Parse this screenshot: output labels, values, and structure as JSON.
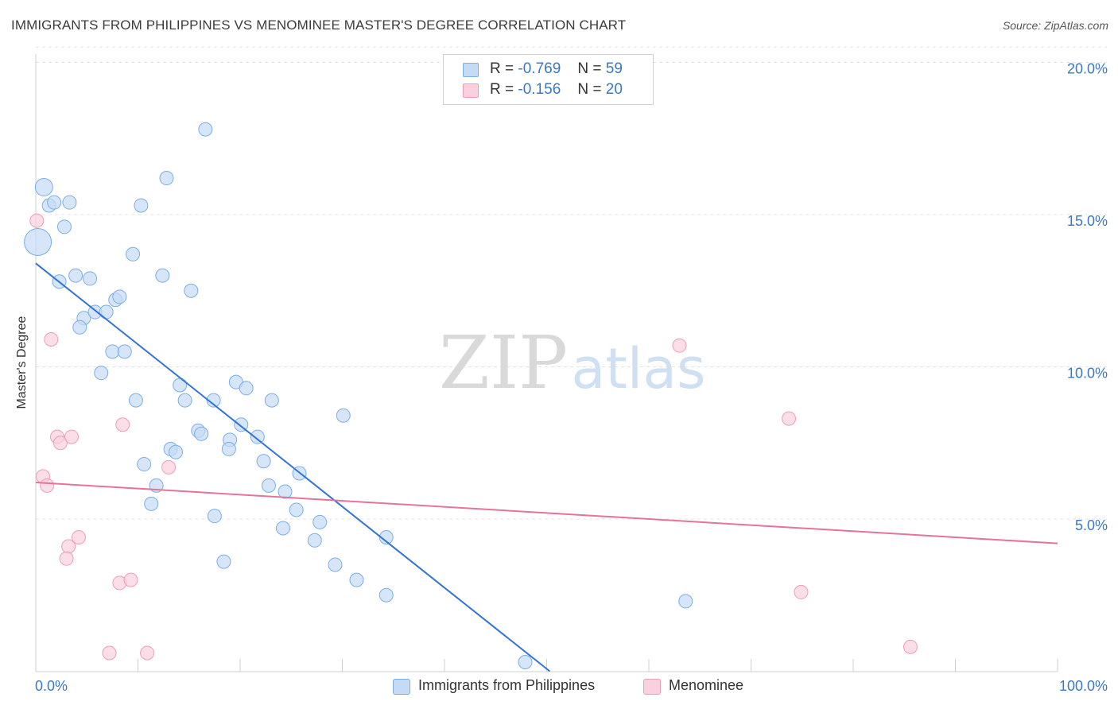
{
  "title": "IMMIGRANTS FROM PHILIPPINES VS MENOMINEE MASTER'S DEGREE CORRELATION CHART",
  "source": "Source: ZipAtlas.com",
  "watermark": {
    "zip": "ZIP",
    "atlas": "atlas"
  },
  "colors": {
    "blue_fill": "#c5dbf5",
    "blue_stroke": "#7baee8",
    "blue_line": "#2f74d6",
    "pink_fill": "#f9d0de",
    "pink_stroke": "#ee9db8",
    "pink_line": "#e5739a",
    "tick_label": "#3b78c4",
    "grid": "#e3e3e3"
  },
  "stats": [
    {
      "r_label": "R =",
      "r_value": "-0.769",
      "n_label": "N =",
      "n_value": "59",
      "color": "blue"
    },
    {
      "r_label": "R =",
      "r_value": "-0.156",
      "n_label": "N =",
      "n_value": "20",
      "color": "pink"
    }
  ],
  "legend": [
    {
      "label": "Immigrants from Philippines",
      "color": "blue"
    },
    {
      "label": "Menominee",
      "color": "pink"
    }
  ],
  "chart_data": {
    "type": "scatter",
    "title": "IMMIGRANTS FROM PHILIPPINES VS MENOMINEE MASTER'S DEGREE CORRELATION CHART",
    "xlabel": "",
    "ylabel": "Master's Degree",
    "xlim": [
      0,
      100
    ],
    "ylim": [
      0,
      20.5
    ],
    "x_ticks": [
      0,
      10,
      20,
      30,
      40,
      50,
      60,
      70,
      80,
      90,
      100
    ],
    "x_tick_labels": {
      "0": "0.0%",
      "100": "100.0%"
    },
    "y_ticks": [
      5,
      10,
      15,
      20
    ],
    "y_tick_labels": [
      "5.0%",
      "10.0%",
      "15.0%",
      "20.0%"
    ],
    "grid": "horizontal dashed",
    "series": [
      {
        "name": "Immigrants from Philippines",
        "color": "blue",
        "trend": {
          "x": [
            0,
            50.3
          ],
          "y": [
            13.4,
            0
          ]
        },
        "points": [
          {
            "x": 0.2,
            "y": 14.1,
            "s": 3
          },
          {
            "x": 0.8,
            "y": 15.9,
            "s": 2
          },
          {
            "x": 1.3,
            "y": 15.3,
            "s": 1
          },
          {
            "x": 1.8,
            "y": 15.4,
            "s": 1
          },
          {
            "x": 3.3,
            "y": 15.4,
            "s": 1
          },
          {
            "x": 2.8,
            "y": 14.6,
            "s": 1
          },
          {
            "x": 2.3,
            "y": 12.8,
            "s": 1
          },
          {
            "x": 3.9,
            "y": 13.0,
            "s": 1
          },
          {
            "x": 5.3,
            "y": 12.9,
            "s": 1
          },
          {
            "x": 4.7,
            "y": 11.6,
            "s": 1
          },
          {
            "x": 5.8,
            "y": 11.8,
            "s": 1
          },
          {
            "x": 6.9,
            "y": 11.8,
            "s": 1
          },
          {
            "x": 4.3,
            "y": 11.3,
            "s": 1
          },
          {
            "x": 7.8,
            "y": 12.2,
            "s": 1
          },
          {
            "x": 8.2,
            "y": 12.3,
            "s": 1
          },
          {
            "x": 7.5,
            "y": 10.5,
            "s": 1
          },
          {
            "x": 8.7,
            "y": 10.5,
            "s": 1
          },
          {
            "x": 6.4,
            "y": 9.8,
            "s": 1
          },
          {
            "x": 9.5,
            "y": 13.7,
            "s": 1
          },
          {
            "x": 10.3,
            "y": 15.3,
            "s": 1
          },
          {
            "x": 12.8,
            "y": 16.2,
            "s": 1
          },
          {
            "x": 16.6,
            "y": 17.8,
            "s": 1
          },
          {
            "x": 12.4,
            "y": 13.0,
            "s": 1
          },
          {
            "x": 15.2,
            "y": 12.5,
            "s": 1
          },
          {
            "x": 9.8,
            "y": 8.9,
            "s": 1
          },
          {
            "x": 14.1,
            "y": 9.4,
            "s": 1
          },
          {
            "x": 14.6,
            "y": 8.9,
            "s": 1
          },
          {
            "x": 17.4,
            "y": 8.9,
            "s": 1
          },
          {
            "x": 19.6,
            "y": 9.5,
            "s": 1
          },
          {
            "x": 20.6,
            "y": 9.3,
            "s": 1
          },
          {
            "x": 23.1,
            "y": 8.9,
            "s": 1
          },
          {
            "x": 15.9,
            "y": 7.9,
            "s": 1
          },
          {
            "x": 16.2,
            "y": 7.8,
            "s": 1
          },
          {
            "x": 20.1,
            "y": 8.1,
            "s": 1
          },
          {
            "x": 19.0,
            "y": 7.6,
            "s": 1
          },
          {
            "x": 18.9,
            "y": 7.3,
            "s": 1
          },
          {
            "x": 21.7,
            "y": 7.7,
            "s": 1
          },
          {
            "x": 13.2,
            "y": 7.3,
            "s": 1
          },
          {
            "x": 13.7,
            "y": 7.2,
            "s": 1
          },
          {
            "x": 10.6,
            "y": 6.8,
            "s": 1
          },
          {
            "x": 11.8,
            "y": 6.1,
            "s": 1
          },
          {
            "x": 11.3,
            "y": 5.5,
            "s": 1
          },
          {
            "x": 22.3,
            "y": 6.9,
            "s": 1
          },
          {
            "x": 25.8,
            "y": 6.5,
            "s": 1
          },
          {
            "x": 22.8,
            "y": 6.1,
            "s": 1
          },
          {
            "x": 24.4,
            "y": 5.9,
            "s": 1
          },
          {
            "x": 25.5,
            "y": 5.3,
            "s": 1
          },
          {
            "x": 24.2,
            "y": 4.7,
            "s": 1
          },
          {
            "x": 17.5,
            "y": 5.1,
            "s": 1
          },
          {
            "x": 27.8,
            "y": 4.9,
            "s": 1
          },
          {
            "x": 27.3,
            "y": 4.3,
            "s": 1
          },
          {
            "x": 18.4,
            "y": 3.6,
            "s": 1
          },
          {
            "x": 29.3,
            "y": 3.5,
            "s": 1
          },
          {
            "x": 31.4,
            "y": 3.0,
            "s": 1
          },
          {
            "x": 34.3,
            "y": 4.4,
            "s": 1
          },
          {
            "x": 34.3,
            "y": 2.5,
            "s": 1
          },
          {
            "x": 30.1,
            "y": 8.4,
            "s": 1
          },
          {
            "x": 63.6,
            "y": 2.3,
            "s": 1
          },
          {
            "x": 47.9,
            "y": 0.3,
            "s": 1
          }
        ]
      },
      {
        "name": "Menominee",
        "color": "pink",
        "trend": {
          "x": [
            0,
            100
          ],
          "y": [
            6.2,
            4.2
          ]
        },
        "points": [
          {
            "x": 0.1,
            "y": 14.8,
            "s": 1
          },
          {
            "x": 0.7,
            "y": 6.4,
            "s": 1
          },
          {
            "x": 1.1,
            "y": 6.1,
            "s": 1
          },
          {
            "x": 1.5,
            "y": 10.9,
            "s": 1
          },
          {
            "x": 2.1,
            "y": 7.7,
            "s": 1
          },
          {
            "x": 2.4,
            "y": 7.5,
            "s": 1
          },
          {
            "x": 3.5,
            "y": 7.7,
            "s": 1
          },
          {
            "x": 4.2,
            "y": 4.4,
            "s": 1
          },
          {
            "x": 3.2,
            "y": 4.1,
            "s": 1
          },
          {
            "x": 3.0,
            "y": 3.7,
            "s": 1
          },
          {
            "x": 8.5,
            "y": 8.1,
            "s": 1
          },
          {
            "x": 13.0,
            "y": 6.7,
            "s": 1
          },
          {
            "x": 8.2,
            "y": 2.9,
            "s": 1
          },
          {
            "x": 9.3,
            "y": 3.0,
            "s": 1
          },
          {
            "x": 7.2,
            "y": 0.6,
            "s": 1
          },
          {
            "x": 10.9,
            "y": 0.6,
            "s": 1
          },
          {
            "x": 63.0,
            "y": 10.7,
            "s": 1
          },
          {
            "x": 73.7,
            "y": 8.3,
            "s": 1
          },
          {
            "x": 74.9,
            "y": 2.6,
            "s": 1
          },
          {
            "x": 85.6,
            "y": 0.8,
            "s": 1
          }
        ]
      }
    ]
  }
}
